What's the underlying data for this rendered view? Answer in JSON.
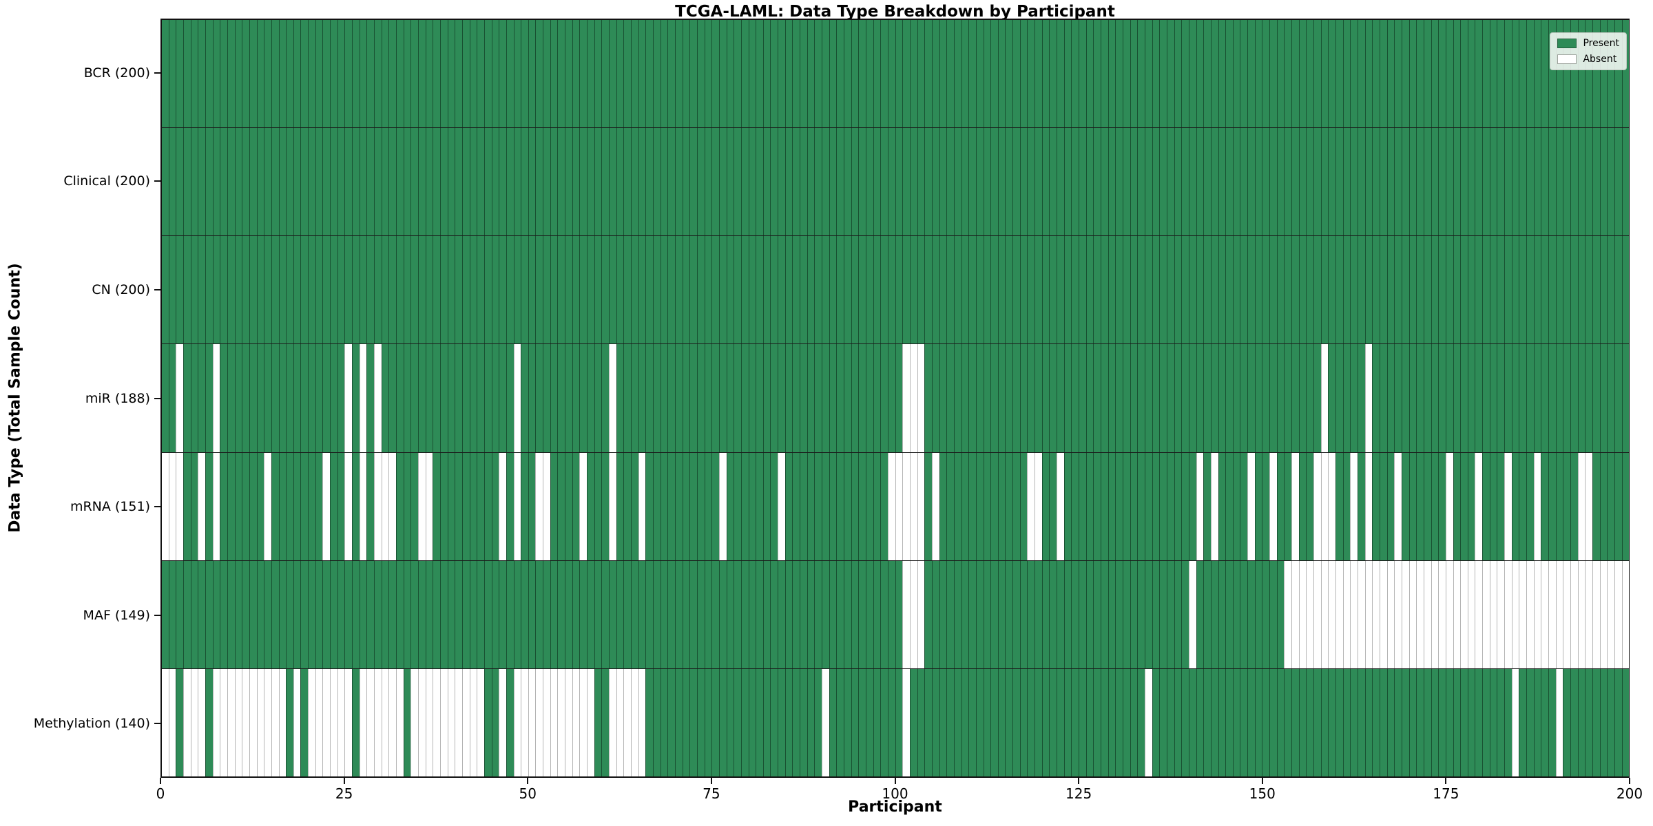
{
  "title": "TCGA-LAML: Data Type Breakdown by Participant",
  "xlabel": "Participant",
  "ylabel": "Data Type (Total Sample Count)",
  "legend": {
    "present_label": "Present",
    "absent_label": "Absent"
  },
  "colors": {
    "present": "#2e8b57",
    "absent": "#ffffff",
    "present_cell_edge": "rgba(10,35,20,0.55)",
    "absent_cell_edge": "#b4b4b4",
    "row_divider": "#1b1b1b",
    "spine": "#111111"
  },
  "chart_data": {
    "type": "heatmap",
    "title": "TCGA-LAML: Data Type Breakdown by Participant",
    "xlabel": "Participant",
    "ylabel": "Data Type (Total Sample Count)",
    "x_range": [
      0,
      200
    ],
    "x_ticks": [
      0,
      25,
      50,
      75,
      100,
      125,
      150,
      175,
      200
    ],
    "n_participants": 200,
    "legend_entries": [
      "Present",
      "Absent"
    ],
    "legend_position": "upper right",
    "rows": [
      {
        "data_type": "BCR",
        "label": "BCR (200)",
        "present_count": 200,
        "absent_participants": []
      },
      {
        "data_type": "Clinical",
        "label": "Clinical (200)",
        "present_count": 200,
        "absent_participants": []
      },
      {
        "data_type": "CN",
        "label": "CN (200)",
        "present_count": 200,
        "absent_participants": []
      },
      {
        "data_type": "miR",
        "label": "miR (188)",
        "present_count": 188,
        "absent_participants": [
          2,
          7,
          25,
          27,
          29,
          48,
          61,
          101,
          102,
          103,
          158,
          164
        ]
      },
      {
        "data_type": "mRNA",
        "label": "mRNA (151)",
        "present_count": 151,
        "absent_participants": [
          0,
          1,
          2,
          5,
          7,
          14,
          22,
          25,
          27,
          29,
          30,
          31,
          35,
          36,
          46,
          48,
          51,
          52,
          57,
          61,
          65,
          76,
          84,
          99,
          100,
          101,
          102,
          103,
          105,
          118,
          119,
          122,
          141,
          143,
          148,
          151,
          154,
          157,
          158,
          159,
          162,
          164,
          168,
          175,
          179,
          183,
          187,
          193,
          194
        ]
      },
      {
        "data_type": "MAF",
        "label": "MAF (149)",
        "present_count": 149,
        "absent_participants": [
          101,
          102,
          103,
          140,
          153,
          154,
          155,
          156,
          157,
          158,
          159,
          160,
          161,
          162,
          163,
          164,
          165,
          166,
          167,
          168,
          169,
          170,
          171,
          172,
          173,
          174,
          175,
          176,
          177,
          178,
          179,
          180,
          181,
          182,
          183,
          184,
          185,
          186,
          187,
          188,
          189,
          190,
          191,
          192,
          193,
          194,
          195,
          196,
          197,
          198,
          199
        ]
      },
      {
        "data_type": "Methylation",
        "label": "Methylation (140)",
        "present_count": 140,
        "absent_participants": [
          0,
          1,
          3,
          4,
          5,
          7,
          8,
          9,
          10,
          11,
          12,
          13,
          14,
          15,
          16,
          18,
          20,
          21,
          22,
          23,
          24,
          25,
          27,
          28,
          29,
          30,
          31,
          32,
          34,
          35,
          36,
          37,
          38,
          39,
          40,
          41,
          42,
          43,
          46,
          48,
          49,
          50,
          51,
          52,
          53,
          54,
          55,
          56,
          57,
          58,
          61,
          62,
          63,
          64,
          65,
          90,
          101,
          134,
          184,
          190
        ]
      }
    ]
  }
}
